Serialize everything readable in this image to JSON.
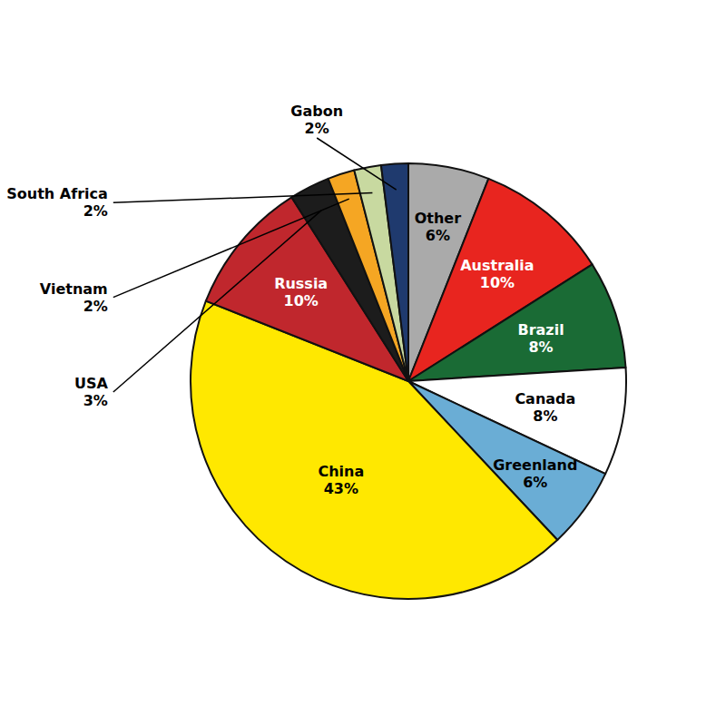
{
  "chart_data": {
    "type": "pie",
    "categories": [
      "Other",
      "Australia",
      "Brazil",
      "Canada",
      "Greenland",
      "China",
      "Russia",
      "USA",
      "Vietnam",
      "South Africa",
      "Gabon"
    ],
    "values": [
      6,
      10,
      8,
      8,
      6,
      43,
      10,
      3,
      2,
      2,
      2
    ],
    "value_labels": [
      "6%",
      "10%",
      "8%",
      "8%",
      "6%",
      "43%",
      "10%",
      "3%",
      "2%",
      "2%",
      "2%"
    ],
    "colors": [
      "#AAAAAA",
      "#E8251F",
      "#1A6B35",
      "#FFFFFF",
      "#6AADD5",
      "#FFE800",
      "#C0272D",
      "#1C1C1C",
      "#F5A623",
      "#C8D9A0",
      "#1F3A6E"
    ],
    "data_labels": true
  }
}
